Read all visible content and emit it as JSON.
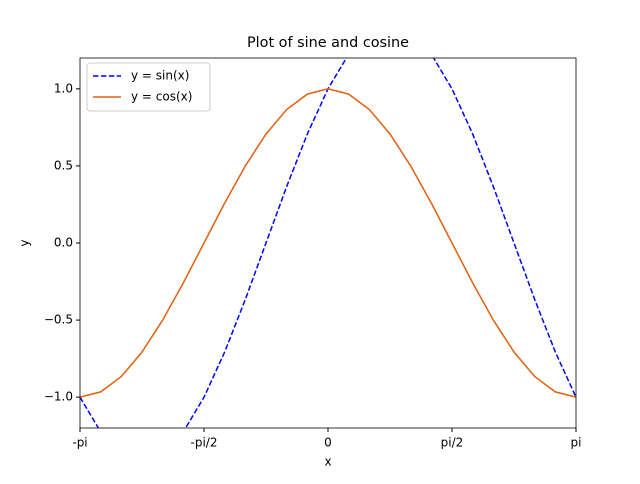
{
  "chart_data": {
    "type": "line",
    "title": "Plot of sine and cosine",
    "x_label": "x",
    "y_label": "y",
    "x": [
      -3.1416,
      -2.8798,
      -2.618,
      -2.3562,
      -2.0944,
      -1.8326,
      -1.5708,
      -1.309,
      -1.0472,
      -0.7854,
      -0.5236,
      -0.2618,
      0,
      0.2618,
      0.5236,
      0.7854,
      1.0472,
      1.309,
      1.5708,
      1.8326,
      2.0944,
      2.3562,
      2.618,
      2.8798,
      3.1416
    ],
    "series": [
      {
        "name": "y = sin(x)",
        "color": "#0000ff",
        "dash": true,
        "values": [
          -1,
          -1.2247,
          -1.366,
          -1.4142,
          -1.366,
          -1.2247,
          -1,
          -0.7071,
          -0.366,
          0,
          0.366,
          0.7071,
          1,
          1.2247,
          1.366,
          1.4142,
          1.366,
          1.2247,
          1,
          0.7071,
          0.366,
          0,
          -0.366,
          -0.7071,
          -1
        ]
      },
      {
        "name": "y = cos(x)",
        "color": "#e06010",
        "dash": false,
        "values": [
          -1,
          -0.9659,
          -0.866,
          -0.7071,
          -0.5,
          -0.2588,
          0,
          0.2588,
          0.5,
          0.7071,
          0.866,
          0.9659,
          1,
          0.9659,
          0.866,
          0.7071,
          0.5,
          0.2588,
          0,
          -0.2588,
          -0.5,
          -0.7071,
          -0.866,
          -0.9659,
          -1
        ]
      }
    ],
    "xlim": [
      -3.1416,
      3.1416
    ],
    "xticks": [
      {
        "value": -3.1416,
        "label": "-pi"
      },
      {
        "value": -1.5708,
        "label": "-pi/2"
      },
      0,
      {
        "value": 1.5708,
        "label": "pi/2"
      },
      {
        "value": 3.1416,
        "label": "pi"
      }
    ],
    "ylim": [
      -1.2,
      1.2
    ],
    "yticks": [
      {
        "value": -1,
        "label": "−1.0"
      },
      {
        "value": -0.5,
        "label": "−0.5"
      },
      {
        "value": 0,
        "label": "0.0"
      },
      {
        "value": 0.5,
        "label": "0.5"
      },
      {
        "value": 1,
        "label": "1.0"
      }
    ],
    "legend": "upper left",
    "grid": false
  }
}
